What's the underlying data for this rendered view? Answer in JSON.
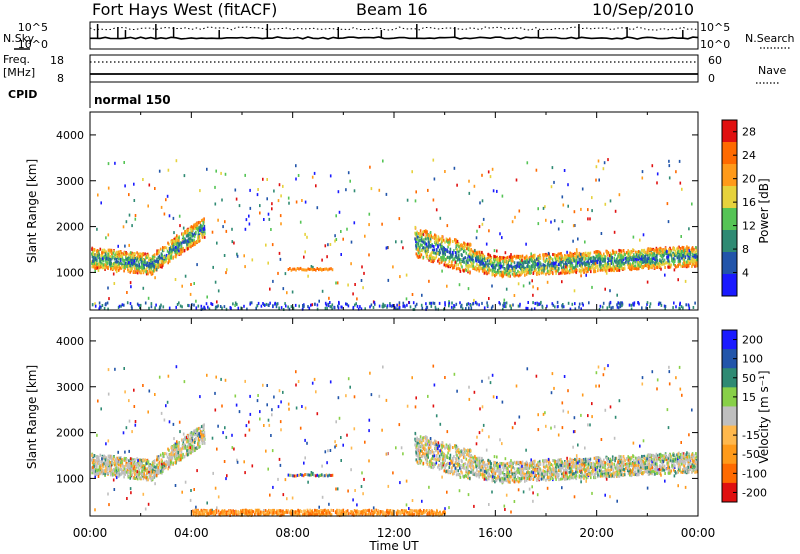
{
  "header": {
    "station": "Fort Hays West (fitACF)",
    "beam": "Beam 16",
    "date": "10/Sep/2010"
  },
  "panels": {
    "nsky_label": "N.Sky",
    "nsky_tick_top": "10^5",
    "nsky_tick_bottom": "10^0",
    "nsearch_label": "N.Search",
    "freq_label": "Freq.",
    "freq_unit": "[MHz]",
    "freq_tick_top": "18",
    "freq_tick_bottom": "8",
    "nave_label": "Nave",
    "nave_tick_top": "60",
    "nave_tick_bottom": "0",
    "cpid_label": "CPID",
    "cpid_value": "normal 150"
  },
  "colors": {
    "power_scale": [
      "#1a1aff",
      "#2255aa",
      "#2f8a73",
      "#55c455",
      "#e6d23c",
      "#ff9a1a",
      "#ff6a00",
      "#e01010"
    ],
    "velocity_scale": [
      "#e01010",
      "#ff6a00",
      "#ff9a1a",
      "#ffb84d",
      "#bfbfbf",
      "#88d048",
      "#2f8a73",
      "#2255aa",
      "#1a1aff"
    ]
  },
  "chart_data": [
    {
      "type": "heatmap",
      "name": "power",
      "ylabel": "Slant Range [km]",
      "xlabel": "",
      "ylim": [
        180,
        4500
      ],
      "y_ticks": [
        "1000",
        "2000",
        "3000",
        "4000"
      ],
      "colorbar_label": "Power [dB]",
      "colorbar_ticks": [
        "4",
        "8",
        "12",
        "16",
        "20",
        "24",
        "28"
      ],
      "colorbar_range": [
        0,
        30
      ]
    },
    {
      "type": "heatmap",
      "name": "velocity",
      "ylabel": "Slant Range [km]",
      "xlabel": "Time UT",
      "ylim": [
        180,
        4500
      ],
      "y_ticks": [
        "1000",
        "2000",
        "3000",
        "4000"
      ],
      "x_ticks": [
        "00:00",
        "04:00",
        "08:00",
        "12:00",
        "16:00",
        "20:00",
        "00:00"
      ],
      "colorbar_label": "Velocity [m s⁻¹]",
      "colorbar_ticks": [
        "200",
        "100",
        "50",
        "15",
        "-15",
        "-50",
        "-100",
        "-200"
      ],
      "colorbar_range": [
        -250,
        250
      ]
    }
  ]
}
